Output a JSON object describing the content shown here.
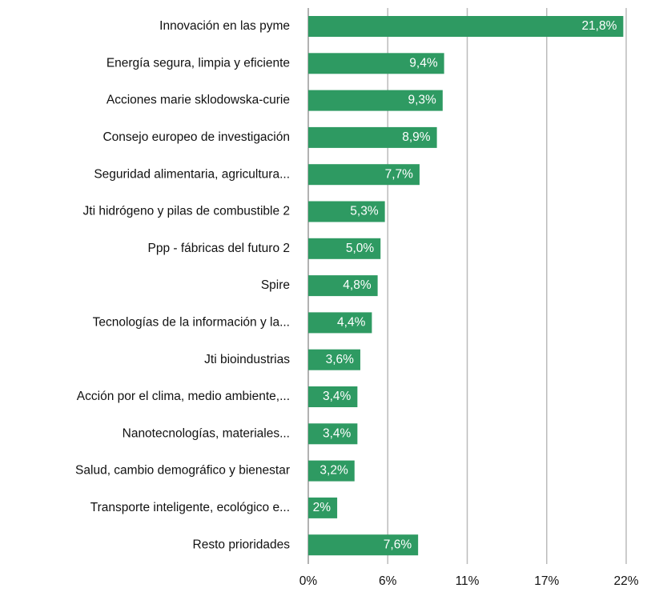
{
  "chart_data": {
    "type": "hbar",
    "categories": [
      "Innovación en las pyme",
      "Energía segura, limpia y eficiente",
      "Acciones marie sklodowska-curie",
      "Consejo europeo de investigación",
      "Seguridad alimentaria, agricultura...",
      "Jti hidrógeno y pilas de combustible 2",
      "Ppp - fábricas del futuro 2",
      "Spire",
      "Tecnologías de la información y la...",
      "Jti bioindustrias",
      "Acción por el clima, medio ambiente,...",
      "Nanotecnologías, materiales...",
      "Salud, cambio demográfico y bienestar",
      "Transporte inteligente, ecológico e...",
      "Resto prioridades"
    ],
    "values": [
      21.8,
      9.4,
      9.3,
      8.9,
      7.7,
      5.3,
      5.0,
      4.8,
      4.4,
      3.6,
      3.4,
      3.4,
      3.2,
      2,
      7.6
    ],
    "value_labels": [
      "21,8%",
      "9,4%",
      "9,3%",
      "8,9%",
      "7,7%",
      "5,3%",
      "5,0%",
      "4,8%",
      "4,4%",
      "3,6%",
      "3,4%",
      "3,4%",
      "3,2%",
      "2%",
      "7,6%"
    ],
    "color": "#2e9a62",
    "xlim": [
      0,
      22
    ],
    "xticks": [
      {
        "value": 0,
        "label": "0%"
      },
      {
        "value": 5.5,
        "label": "6%"
      },
      {
        "value": 11,
        "label": "11%"
      },
      {
        "value": 16.5,
        "label": "17%"
      },
      {
        "value": 22,
        "label": "22%"
      }
    ],
    "grid": true
  }
}
